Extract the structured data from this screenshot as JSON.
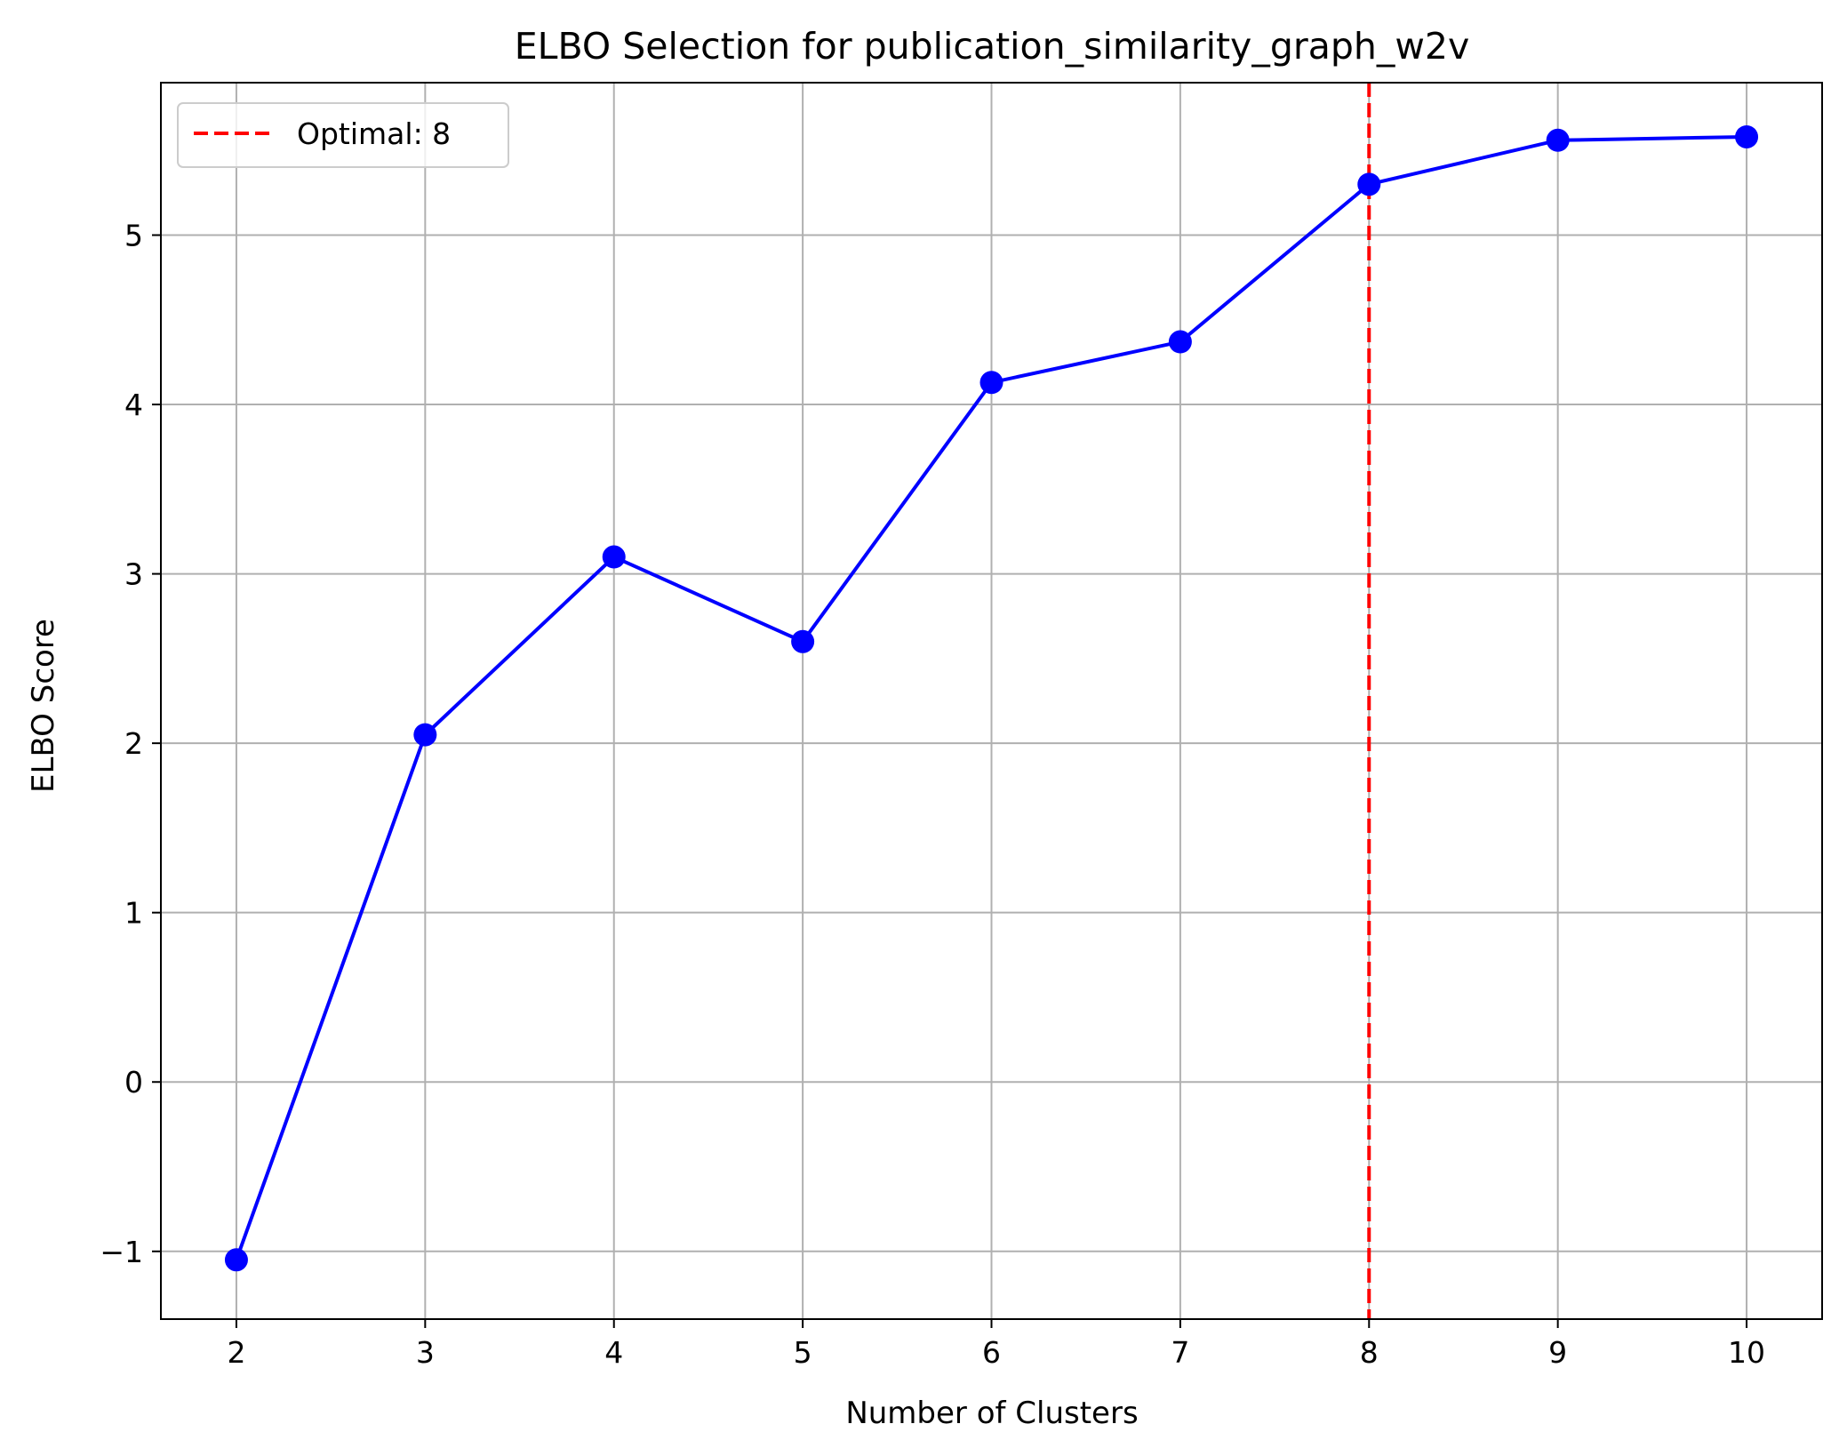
{
  "chart_data": {
    "type": "line",
    "title": "ELBO Selection for publication_similarity_graph_w2v",
    "xlabel": "Number of Clusters",
    "ylabel": "ELBO Score",
    "x": [
      2,
      3,
      4,
      5,
      6,
      7,
      8,
      9,
      10
    ],
    "xlim": [
      1.6,
      10.4
    ],
    "ylim": [
      -1.4,
      5.9
    ],
    "xticks": [
      2,
      3,
      4,
      5,
      6,
      7,
      8,
      9,
      10
    ],
    "yticks": [
      -1,
      0,
      1,
      2,
      3,
      4,
      5
    ],
    "ytick_labels": [
      "−1",
      "0",
      "1",
      "2",
      "3",
      "4",
      "5"
    ],
    "grid": true,
    "legend_position": "top-left",
    "series": [
      {
        "values": [
          -1.05,
          2.05,
          3.1,
          2.6,
          4.13,
          4.37,
          5.3,
          5.56,
          5.58
        ],
        "color": "#0000ff",
        "marker": "circle"
      }
    ],
    "annotations": [
      {
        "type": "vline",
        "x": 8,
        "label": "Optimal: 8",
        "color": "#ff0000",
        "style": "dashed"
      }
    ]
  }
}
